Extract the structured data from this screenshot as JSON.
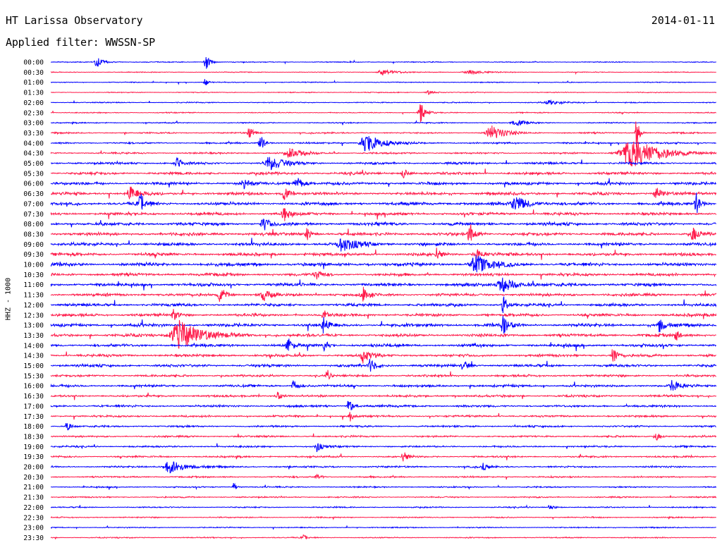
{
  "header": {
    "station": "HT Larissa Observatory",
    "date": "2014-01-11",
    "filter": "Applied filter: WWSSN-SP"
  },
  "chart_data": {
    "type": "line",
    "title": "HT Larissa Observatory",
    "subtitle": "Applied filter: WWSSN-SP",
    "date": "2014-01-11",
    "ylabel": "HHZ - 1000",
    "row_minutes": 30,
    "colors": {
      "even_rows": "#0000ff",
      "odd_rows": "#ff1a4a"
    },
    "rows": [
      {
        "label": "00:00",
        "noise": 0.8,
        "events": [
          {
            "x": 0.07,
            "amp": 7,
            "w": 0.01
          },
          {
            "x": 0.233,
            "amp": 12,
            "w": 0.006
          }
        ]
      },
      {
        "label": "00:30",
        "noise": 0.7,
        "events": [
          {
            "x": 0.5,
            "amp": 4,
            "w": 0.02
          },
          {
            "x": 0.63,
            "amp": 3,
            "w": 0.02
          }
        ]
      },
      {
        "label": "01:00",
        "noise": 0.8,
        "events": [
          {
            "x": 0.232,
            "amp": 6,
            "w": 0.004
          }
        ]
      },
      {
        "label": "01:30",
        "noise": 0.8,
        "events": [
          {
            "x": 0.568,
            "amp": 3,
            "w": 0.01
          }
        ]
      },
      {
        "label": "02:00",
        "noise": 0.9,
        "events": [
          {
            "x": 0.75,
            "amp": 3,
            "w": 0.02
          }
        ]
      },
      {
        "label": "02:30",
        "noise": 0.9,
        "events": [
          {
            "x": 0.556,
            "amp": 14,
            "w": 0.008
          }
        ]
      },
      {
        "label": "03:00",
        "noise": 1.0,
        "events": [
          {
            "x": 0.7,
            "amp": 4,
            "w": 0.015
          }
        ]
      },
      {
        "label": "03:30",
        "noise": 1.3,
        "events": [
          {
            "x": 0.298,
            "amp": 9,
            "w": 0.006
          },
          {
            "x": 0.663,
            "amp": 10,
            "w": 0.02
          },
          {
            "x": 0.88,
            "amp": 24,
            "w": 0.004
          }
        ]
      },
      {
        "label": "04:00",
        "noise": 1.5,
        "events": [
          {
            "x": 0.475,
            "amp": 13,
            "w": 0.022
          },
          {
            "x": 0.315,
            "amp": 12,
            "w": 0.006
          }
        ]
      },
      {
        "label": "04:30",
        "noise": 1.5,
        "events": [
          {
            "x": 0.875,
            "amp": 22,
            "w": 0.04
          },
          {
            "x": 0.36,
            "amp": 6,
            "w": 0.02
          }
        ]
      },
      {
        "label": "05:00",
        "noise": 2.0,
        "events": [
          {
            "x": 0.19,
            "amp": 10,
            "w": 0.006
          },
          {
            "x": 0.33,
            "amp": 10,
            "w": 0.02
          }
        ]
      },
      {
        "label": "05:30",
        "noise": 2.4,
        "events": [
          {
            "x": 0.53,
            "amp": 8,
            "w": 0.006
          }
        ]
      },
      {
        "label": "06:00",
        "noise": 2.6,
        "events": [
          {
            "x": 0.29,
            "amp": 8,
            "w": 0.008
          },
          {
            "x": 0.37,
            "amp": 9,
            "w": 0.01
          }
        ]
      },
      {
        "label": "06:30",
        "noise": 2.6,
        "events": [
          {
            "x": 0.12,
            "amp": 10,
            "w": 0.012
          },
          {
            "x": 0.35,
            "amp": 10,
            "w": 0.008
          },
          {
            "x": 0.91,
            "amp": 9,
            "w": 0.008
          }
        ]
      },
      {
        "label": "07:00",
        "noise": 2.8,
        "events": [
          {
            "x": 0.135,
            "amp": 14,
            "w": 0.008
          },
          {
            "x": 0.7,
            "amp": 10,
            "w": 0.02
          },
          {
            "x": 0.97,
            "amp": 15,
            "w": 0.006
          }
        ]
      },
      {
        "label": "07:30",
        "noise": 2.6,
        "events": [
          {
            "x": 0.35,
            "amp": 12,
            "w": 0.008
          }
        ]
      },
      {
        "label": "08:00",
        "noise": 2.8,
        "events": [
          {
            "x": 0.32,
            "amp": 9,
            "w": 0.01
          }
        ]
      },
      {
        "label": "08:30",
        "noise": 2.8,
        "events": [
          {
            "x": 0.385,
            "amp": 9,
            "w": 0.006
          },
          {
            "x": 0.63,
            "amp": 14,
            "w": 0.008
          },
          {
            "x": 0.965,
            "amp": 10,
            "w": 0.008
          }
        ]
      },
      {
        "label": "09:00",
        "noise": 2.8,
        "events": [
          {
            "x": 0.44,
            "amp": 10,
            "w": 0.02
          }
        ]
      },
      {
        "label": "09:30",
        "noise": 2.8,
        "events": [
          {
            "x": 0.58,
            "amp": 8,
            "w": 0.006
          },
          {
            "x": 0.64,
            "amp": 8,
            "w": 0.01
          }
        ]
      },
      {
        "label": "10:00",
        "noise": 3.0,
        "events": [
          {
            "x": 0.64,
            "amp": 13,
            "w": 0.02
          }
        ]
      },
      {
        "label": "10:30",
        "noise": 2.6,
        "events": [
          {
            "x": 0.4,
            "amp": 6,
            "w": 0.008
          }
        ]
      },
      {
        "label": "11:00",
        "noise": 2.8,
        "events": [
          {
            "x": 0.68,
            "amp": 10,
            "w": 0.02
          }
        ]
      },
      {
        "label": "11:30",
        "noise": 2.6,
        "events": [
          {
            "x": 0.255,
            "amp": 11,
            "w": 0.008
          },
          {
            "x": 0.32,
            "amp": 10,
            "w": 0.008
          },
          {
            "x": 0.47,
            "amp": 10,
            "w": 0.008
          }
        ]
      },
      {
        "label": "12:00",
        "noise": 2.6,
        "events": [
          {
            "x": 0.68,
            "amp": 12,
            "w": 0.006
          }
        ]
      },
      {
        "label": "12:30",
        "noise": 2.6,
        "events": [
          {
            "x": 0.41,
            "amp": 12,
            "w": 0.005
          },
          {
            "x": 0.185,
            "amp": 8,
            "w": 0.006
          }
        ]
      },
      {
        "label": "13:00",
        "noise": 2.8,
        "events": [
          {
            "x": 0.41,
            "amp": 10,
            "w": 0.008
          },
          {
            "x": 0.68,
            "amp": 12,
            "w": 0.008
          },
          {
            "x": 0.915,
            "amp": 9,
            "w": 0.008
          }
        ]
      },
      {
        "label": "13:30",
        "noise": 2.6,
        "events": [
          {
            "x": 0.195,
            "amp": 22,
            "w": 0.03
          },
          {
            "x": 0.94,
            "amp": 8,
            "w": 0.006
          }
        ]
      },
      {
        "label": "14:00",
        "noise": 2.6,
        "events": [
          {
            "x": 0.356,
            "amp": 12,
            "w": 0.006
          },
          {
            "x": 0.41,
            "amp": 9,
            "w": 0.006
          }
        ]
      },
      {
        "label": "14:30",
        "noise": 2.4,
        "events": [
          {
            "x": 0.47,
            "amp": 12,
            "w": 0.008
          },
          {
            "x": 0.845,
            "amp": 13,
            "w": 0.006
          }
        ]
      },
      {
        "label": "15:00",
        "noise": 2.4,
        "events": [
          {
            "x": 0.48,
            "amp": 9,
            "w": 0.008
          },
          {
            "x": 0.62,
            "amp": 8,
            "w": 0.006
          }
        ]
      },
      {
        "label": "15:30",
        "noise": 2.0,
        "events": [
          {
            "x": 0.415,
            "amp": 8,
            "w": 0.004
          }
        ]
      },
      {
        "label": "16:00",
        "noise": 2.2,
        "events": [
          {
            "x": 0.365,
            "amp": 9,
            "w": 0.006
          },
          {
            "x": 0.935,
            "amp": 9,
            "w": 0.01
          }
        ]
      },
      {
        "label": "16:30",
        "noise": 2.0,
        "events": [
          {
            "x": 0.34,
            "amp": 8,
            "w": 0.006
          }
        ]
      },
      {
        "label": "17:00",
        "noise": 2.0,
        "events": [
          {
            "x": 0.448,
            "amp": 12,
            "w": 0.006
          }
        ]
      },
      {
        "label": "17:30",
        "noise": 1.8,
        "events": [
          {
            "x": 0.45,
            "amp": 6,
            "w": 0.006
          }
        ]
      },
      {
        "label": "18:00",
        "noise": 1.6,
        "events": [
          {
            "x": 0.025,
            "amp": 6,
            "w": 0.006
          }
        ]
      },
      {
        "label": "18:30",
        "noise": 1.6,
        "events": [
          {
            "x": 0.91,
            "amp": 6,
            "w": 0.006
          }
        ]
      },
      {
        "label": "19:00",
        "noise": 1.6,
        "events": [
          {
            "x": 0.4,
            "amp": 8,
            "w": 0.006
          }
        ]
      },
      {
        "label": "19:30",
        "noise": 1.6,
        "events": [
          {
            "x": 0.53,
            "amp": 8,
            "w": 0.006
          }
        ]
      },
      {
        "label": "20:00",
        "noise": 1.6,
        "events": [
          {
            "x": 0.18,
            "amp": 10,
            "w": 0.02
          },
          {
            "x": 0.65,
            "amp": 6,
            "w": 0.006
          }
        ]
      },
      {
        "label": "20:30",
        "noise": 1.4,
        "events": [
          {
            "x": 0.4,
            "amp": 5,
            "w": 0.006
          }
        ]
      },
      {
        "label": "21:00",
        "noise": 1.2,
        "events": [
          {
            "x": 0.275,
            "amp": 6,
            "w": 0.004
          }
        ]
      },
      {
        "label": "21:30",
        "noise": 1.2,
        "events": []
      },
      {
        "label": "22:00",
        "noise": 1.1,
        "events": [
          {
            "x": 0.75,
            "amp": 5,
            "w": 0.006
          }
        ]
      },
      {
        "label": "22:30",
        "noise": 1.1,
        "events": []
      },
      {
        "label": "23:00",
        "noise": 1.0,
        "events": []
      },
      {
        "label": "23:30",
        "noise": 1.0,
        "events": [
          {
            "x": 0.38,
            "amp": 4,
            "w": 0.006
          }
        ]
      }
    ]
  }
}
